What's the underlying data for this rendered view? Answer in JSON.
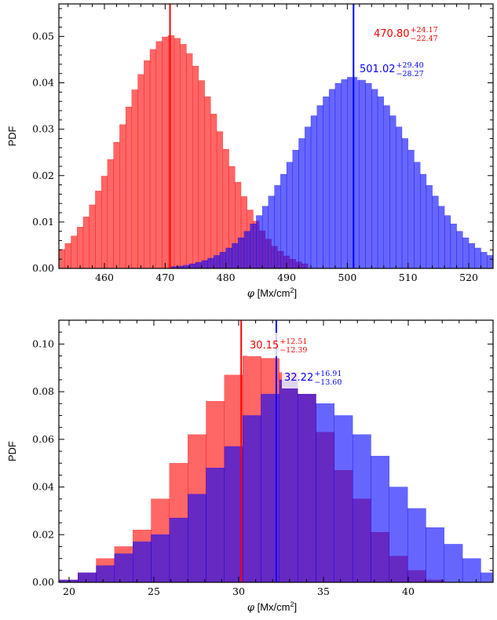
{
  "chart_data": [
    {
      "type": "bar",
      "xlabel_var": "φ",
      "xlabel_unit": "[Mx/cm",
      "xlabel_sup": "2",
      "xlabel_close": "]",
      "ylabel": "PDF",
      "xlim": [
        452.5,
        524
      ],
      "ylim": [
        0,
        0.057
      ],
      "xticks": [
        "460",
        "470",
        "480",
        "490",
        "500",
        "510",
        "520"
      ],
      "yticks": [
        "0.00",
        "0.01",
        "0.02",
        "0.03",
        "0.04",
        "0.05"
      ],
      "grid": false,
      "series": [
        {
          "color": "#ff0000",
          "median": 470.8,
          "label_main": "470.80",
          "label_sup": "+24.17",
          "label_sub": "−22.47",
          "dist": {
            "mu": 470.8,
            "sigma": 7.95,
            "x_start": 452.5,
            "x_end": 493.5,
            "bin_width": 1.0
          }
        },
        {
          "color": "#0000ff",
          "median": 501.02,
          "label_main": "501.02",
          "label_sup": "+29.40",
          "label_sub": "−28.27",
          "dist": {
            "mu": 501.0,
            "sigma": 9.68,
            "x_start": 471.0,
            "x_end": 524.0,
            "bin_width": 1.0
          }
        }
      ]
    },
    {
      "type": "bar",
      "xlabel_var": "φ",
      "xlabel_unit": "[Mx/cm",
      "xlabel_sup": "2",
      "xlabel_close": "]",
      "ylabel": "PDF",
      "xlim": [
        19.4,
        45
      ],
      "ylim": [
        0,
        0.11
      ],
      "xticks": [
        "20",
        "25",
        "30",
        "35",
        "40"
      ],
      "yticks": [
        "0.00",
        "0.02",
        "0.04",
        "0.06",
        "0.08",
        "0.10"
      ],
      "grid": false,
      "series": [
        {
          "color": "#ff0000",
          "median": 30.15,
          "label_main": "30.15",
          "label_sup": "+12.51",
          "label_sub": "−12.39",
          "bin_edges": [
            19.44,
            20.52,
            21.6,
            22.68,
            23.76,
            24.84,
            25.92,
            27.0,
            28.08,
            29.16,
            30.24,
            31.32,
            32.4,
            33.48,
            34.56,
            35.64,
            36.72,
            37.8,
            38.88,
            39.96,
            41.04,
            42.12
          ],
          "values": [
            0.001,
            0.004,
            0.01,
            0.015,
            0.022,
            0.035,
            0.05,
            0.062,
            0.076,
            0.087,
            0.095,
            0.094,
            0.088,
            0.079,
            0.063,
            0.047,
            0.035,
            0.021,
            0.011,
            0.005,
            0.001
          ]
        },
        {
          "color": "#0000ff",
          "median": 32.22,
          "label_main": "32.22",
          "label_sup": "+16.91",
          "label_sub": "−13.60",
          "bin_edges": [
            19.44,
            20.52,
            21.6,
            22.68,
            23.76,
            24.84,
            25.92,
            27.0,
            28.08,
            29.16,
            30.24,
            31.32,
            32.4,
            33.48,
            34.56,
            35.64,
            36.72,
            37.8,
            38.88,
            39.96,
            41.04,
            42.12,
            43.2,
            44.28,
            45.36
          ],
          "values": [
            0.001,
            0.004,
            0.007,
            0.012,
            0.017,
            0.02,
            0.027,
            0.037,
            0.048,
            0.057,
            0.07,
            0.079,
            0.085,
            0.079,
            0.075,
            0.07,
            0.062,
            0.053,
            0.04,
            0.031,
            0.023,
            0.016,
            0.01,
            0.004
          ]
        }
      ]
    }
  ]
}
